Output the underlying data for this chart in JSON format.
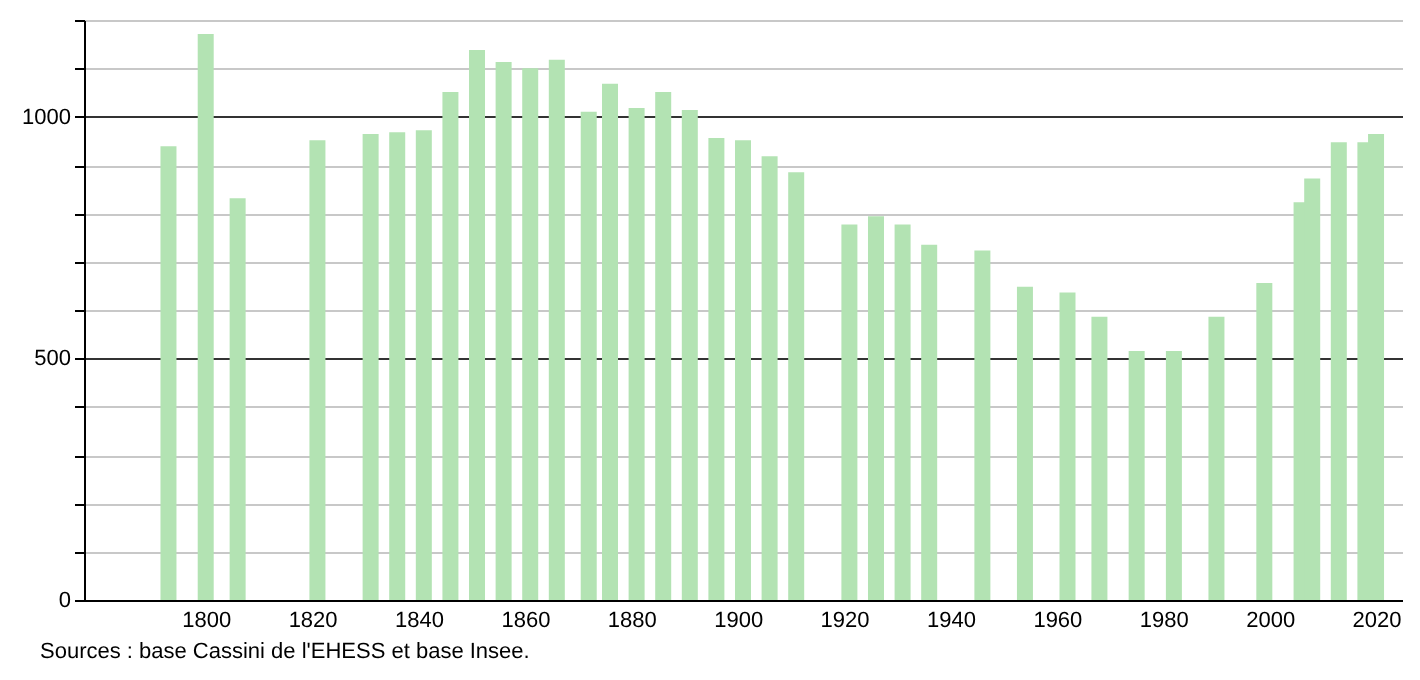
{
  "chart_data": {
    "type": "bar",
    "annotations": [
      "Sources : base Cassini de l'EHESS et base Insee."
    ],
    "x": [
      1793,
      1800,
      1806,
      1821,
      1831,
      1836,
      1841,
      1846,
      1851,
      1856,
      1861,
      1866,
      1872,
      1876,
      1881,
      1886,
      1891,
      1896,
      1901,
      1906,
      1911,
      1921,
      1926,
      1931,
      1936,
      1946,
      1954,
      1962,
      1968,
      1975,
      1982,
      1990,
      1999,
      2006,
      2008,
      2013,
      2018,
      2020
    ],
    "values": [
      939,
      1171,
      831,
      951,
      964,
      968,
      972,
      1051,
      1138,
      1113,
      1100,
      1118,
      1010,
      1068,
      1018,
      1051,
      1014,
      956,
      951,
      918,
      885,
      777,
      794,
      777,
      735,
      723,
      648,
      636,
      586,
      515,
      515,
      586,
      656,
      823,
      872,
      947,
      947,
      964
    ],
    "color": "#b3e3b3",
    "xlim": [
      1779,
      2023
    ],
    "xticks": [
      1800,
      1820,
      1840,
      1860,
      1880,
      1900,
      1920,
      1940,
      1960,
      1980,
      2000,
      2020
    ],
    "ylim": [
      0,
      1200
    ],
    "yticks": [
      0,
      {
        "value": 100,
        "label": null
      },
      {
        "value": 200,
        "label": null
      },
      {
        "value": 300,
        "label": null
      },
      {
        "value": 400,
        "label": null
      },
      500,
      {
        "value": 600,
        "label": null
      },
      {
        "value": 700,
        "label": null
      },
      {
        "value": 800,
        "label": null
      },
      {
        "value": 900,
        "label": null
      },
      1000,
      {
        "value": 1100,
        "label": null
      },
      {
        "value": 1200,
        "label": null
      }
    ],
    "grid": true
  }
}
